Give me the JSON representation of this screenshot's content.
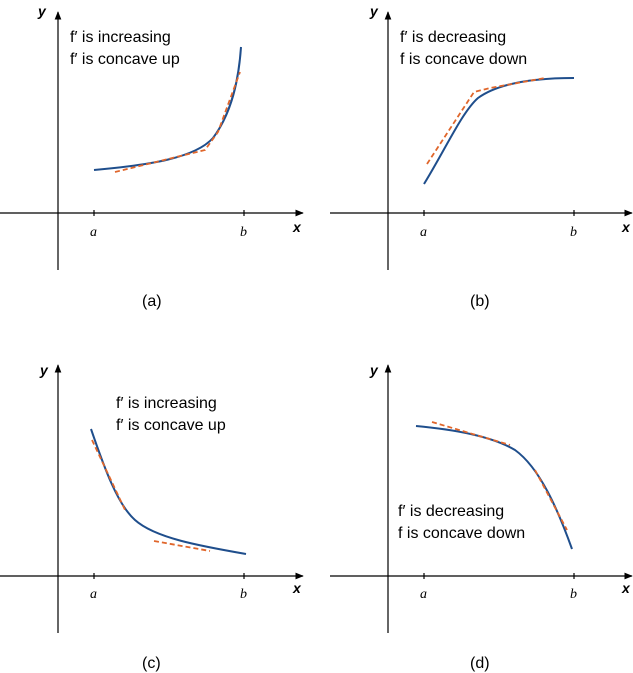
{
  "figure": {
    "y_label": "y",
    "x_label": "x",
    "tick_a": "a",
    "tick_b": "b",
    "panels": [
      {
        "id": "a",
        "caption": "(a)",
        "line1": "f′ is increasing",
        "line2": "f′ is concave up",
        "shape": "increasing, concave up"
      },
      {
        "id": "b",
        "caption": "(b)",
        "line1": "f′ is decreasing",
        "line2": "f is concave down",
        "shape": "increasing, concave down"
      },
      {
        "id": "c",
        "caption": "(c)",
        "line1": "f′ is increasing",
        "line2": "f′ is concave up",
        "shape": "decreasing, concave up"
      },
      {
        "id": "d",
        "caption": "(d)",
        "line1": "f′ is decreasing",
        "line2": "f is concave down",
        "shape": "decreasing, concave down"
      }
    ]
  },
  "colors": {
    "curve": "#1f4e8c",
    "tangent": "#e0662b",
    "axis": "#000000"
  }
}
